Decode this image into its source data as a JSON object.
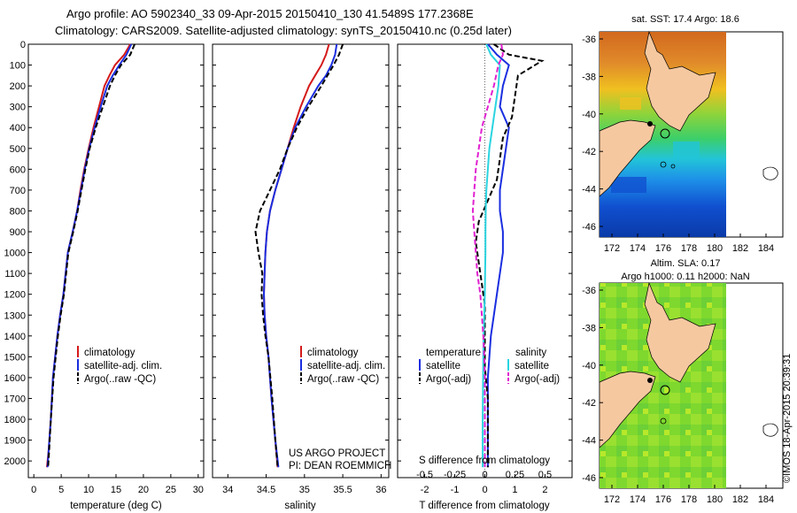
{
  "header": {
    "line1": "Argo profile: AO 5902340_33 09-Apr-2015 20150410_130 41.5489S 177.2368E",
    "line2": "Climatology: CARS2009. Satellite-adjusted climatology: synTS_20150410.nc (0.25d later)"
  },
  "colors": {
    "climatology": "#d41a1a",
    "satellite": "#1a2ee0",
    "argo": "#000000",
    "sat_salinity": "#2ad4e0",
    "argo_salinity": "#e020d0",
    "land": "#f5c8a0"
  },
  "chart_data": [
    {
      "type": "line",
      "panel": "temperature",
      "xlabel": "temperature (deg C)",
      "ylabel": "",
      "xlim": [
        -1,
        31
      ],
      "ylim": [
        2080,
        0
      ],
      "y_reversed": true,
      "xticks": [
        0,
        5,
        10,
        15,
        20,
        25,
        30
      ],
      "yticks": [
        0,
        100,
        200,
        300,
        400,
        500,
        600,
        700,
        800,
        900,
        1000,
        1100,
        1200,
        1300,
        1400,
        1500,
        1600,
        1700,
        1800,
        1900,
        2000
      ],
      "series": [
        {
          "name": "climatology",
          "color": "#d41a1a",
          "x": [
            17.6,
            16.5,
            14.8,
            13.8,
            12.9,
            11.9,
            10.9,
            10.0,
            9.2,
            8.5,
            7.9,
            7.1,
            6.2,
            5.4,
            4.8,
            4.3,
            3.9,
            3.5,
            3.1,
            2.7,
            2.4
          ],
          "y": [
            0,
            50,
            100,
            150,
            200,
            300,
            400,
            500,
            600,
            700,
            800,
            900,
            1000,
            1200,
            1300,
            1400,
            1500,
            1600,
            1800,
            1950,
            2030
          ]
        },
        {
          "name": "satellite-adj. clim.",
          "color": "#1a2ee0",
          "x": [
            17.8,
            16.9,
            15.6,
            14.4,
            13.4,
            12.2,
            11.1,
            10.1,
            9.3,
            8.6,
            7.9,
            7.1,
            6.2,
            5.4,
            4.8,
            4.3,
            3.9,
            3.5,
            3.1,
            2.7,
            2.5
          ],
          "y": [
            0,
            50,
            100,
            150,
            200,
            300,
            400,
            500,
            600,
            700,
            800,
            900,
            1000,
            1200,
            1300,
            1400,
            1500,
            1600,
            1800,
            1950,
            2030
          ]
        },
        {
          "name": "Argo(..raw -QC)",
          "color": "#000000",
          "dashed": true,
          "x": [
            18.4,
            17.6,
            15.9,
            14.8,
            13.9,
            12.6,
            11.3,
            10.2,
            9.4,
            8.7,
            8.0,
            7.2,
            6.3,
            5.5,
            4.9,
            4.4,
            4.0,
            3.6,
            3.1,
            2.8,
            2.6
          ],
          "y": [
            0,
            50,
            100,
            150,
            200,
            300,
            400,
            500,
            600,
            700,
            800,
            900,
            1000,
            1200,
            1300,
            1400,
            1500,
            1600,
            1800,
            1950,
            2030
          ]
        }
      ]
    },
    {
      "type": "line",
      "panel": "salinity",
      "xlabel": "salinity",
      "ylabel": "",
      "xlim": [
        33.8,
        36.1
      ],
      "ylim": [
        2080,
        0
      ],
      "y_reversed": true,
      "xticks": [
        34,
        34.5,
        35,
        35.5,
        36
      ],
      "series": [
        {
          "name": "climatology",
          "color": "#d41a1a",
          "x": [
            35.32,
            35.28,
            35.22,
            35.14,
            35.06,
            34.95,
            34.86,
            34.78,
            34.7,
            34.62,
            34.55,
            34.51,
            34.49,
            34.48,
            34.47,
            34.48,
            34.5,
            34.53,
            34.57,
            34.62,
            34.65
          ],
          "y": [
            0,
            50,
            100,
            150,
            200,
            300,
            400,
            500,
            600,
            700,
            800,
            900,
            1000,
            1100,
            1200,
            1300,
            1400,
            1500,
            1700,
            1900,
            2030
          ]
        },
        {
          "name": "satellite-adj. clim.",
          "color": "#1a2ee0",
          "x": [
            35.42,
            35.4,
            35.35,
            35.28,
            35.18,
            35.02,
            34.88,
            34.78,
            34.7,
            34.62,
            34.55,
            34.51,
            34.49,
            34.48,
            34.47,
            34.48,
            34.5,
            34.53,
            34.57,
            34.62,
            34.66
          ],
          "y": [
            0,
            50,
            100,
            150,
            200,
            300,
            400,
            500,
            600,
            700,
            800,
            900,
            1000,
            1100,
            1200,
            1300,
            1400,
            1500,
            1700,
            1900,
            2030
          ]
        },
        {
          "name": "Argo(..raw -QC)",
          "color": "#000000",
          "dashed": true,
          "x": [
            35.5,
            35.45,
            35.38,
            35.3,
            35.22,
            35.05,
            34.9,
            34.78,
            34.68,
            34.55,
            34.42,
            34.36,
            34.4,
            34.45,
            34.44,
            34.46,
            34.49,
            34.53,
            34.58,
            34.62,
            34.65
          ],
          "y": [
            0,
            50,
            100,
            150,
            200,
            300,
            400,
            500,
            600,
            700,
            800,
            900,
            1000,
            1100,
            1200,
            1300,
            1400,
            1500,
            1700,
            1900,
            2030
          ]
        }
      ]
    },
    {
      "type": "line",
      "panel": "difference",
      "xlabel": "T difference from climatology",
      "xlabel2": "S difference from climatology",
      "xlim": [
        -2.9,
        2.9
      ],
      "ylim": [
        2080,
        0
      ],
      "y_reversed": true,
      "xticks": [
        -2,
        -1,
        0,
        1,
        2
      ],
      "x2ticks": [
        {
          "v": -0.5,
          "t": "-0.5"
        },
        {
          "v": -0.25,
          "t": "-0.25"
        },
        {
          "v": 0,
          "t": "0"
        },
        {
          "v": 0.25,
          "t": "0.25"
        },
        {
          "v": 0.5,
          "t": "0.5"
        }
      ],
      "series": [
        {
          "name": "satellite",
          "group": "temperature",
          "color": "#1a2ee0",
          "x": [
            0.1,
            0.4,
            0.8,
            0.6,
            0.5,
            0.8,
            0.7,
            0.6,
            0.5,
            0.5,
            0.6,
            0.6,
            0.5,
            0.4,
            0.3,
            0.2,
            0.15,
            0.1,
            0.1,
            0.1,
            0.1
          ],
          "y": [
            0,
            50,
            100,
            200,
            300,
            400,
            500,
            600,
            700,
            800,
            900,
            1000,
            1100,
            1200,
            1300,
            1400,
            1500,
            1600,
            1800,
            1900,
            2030
          ]
        },
        {
          "name": "Argo(-adj)",
          "group": "temperature",
          "color": "#000000",
          "dashed": true,
          "x": [
            0.3,
            0.8,
            1.9,
            1.1,
            1.0,
            0.9,
            0.6,
            0.5,
            0.4,
            0.1,
            -0.2,
            -0.3,
            -0.2,
            -0.1,
            0.0,
            0.0,
            0.0,
            0.0,
            0.1,
            0.1,
            0.1
          ],
          "y": [
            0,
            50,
            80,
            150,
            250,
            350,
            450,
            550,
            650,
            750,
            850,
            950,
            1050,
            1150,
            1250,
            1350,
            1450,
            1550,
            1700,
            1900,
            2030
          ]
        },
        {
          "name": "satellite",
          "group": "salinity",
          "color": "#2ad4e0",
          "x": [
            0.05,
            0.2,
            0.5,
            0.45,
            0.35,
            0.25,
            0.15,
            0.1,
            0.05,
            0.03,
            0.02,
            0.02,
            0.01,
            0.0,
            -0.02,
            -0.04,
            -0.05,
            -0.06,
            -0.07,
            -0.07,
            -0.07
          ],
          "y": [
            0,
            50,
            100,
            200,
            300,
            400,
            500,
            600,
            700,
            800,
            900,
            1000,
            1100,
            1200,
            1300,
            1400,
            1500,
            1600,
            1800,
            1900,
            2030
          ]
        },
        {
          "name": "Argo(-adj)",
          "group": "salinity",
          "color": "#e020d0",
          "dashed": true,
          "x": [
            0.55,
            0.6,
            0.45,
            0.3,
            0.1,
            -0.1,
            -0.2,
            -0.3,
            -0.35,
            -0.4,
            -0.35,
            -0.3,
            -0.25,
            -0.15,
            -0.1,
            -0.05,
            -0.02,
            0.0,
            0.0,
            0.0,
            0.0
          ],
          "y": [
            0,
            50,
            100,
            200,
            300,
            400,
            500,
            600,
            700,
            800,
            900,
            1000,
            1100,
            1200,
            1300,
            1400,
            1500,
            1600,
            1800,
            1900,
            2030
          ]
        }
      ]
    }
  ],
  "legends": {
    "temperature": [
      {
        "label": "climatology",
        "color": "#d41a1a"
      },
      {
        "label": "satellite-adj. clim.",
        "color": "#1a2ee0"
      },
      {
        "label": "Argo(..raw -QC)",
        "color": "#000000"
      }
    ],
    "salinity": [
      {
        "label": "climatology",
        "color": "#d41a1a"
      },
      {
        "label": "satellite-adj. clim.",
        "color": "#1a2ee0"
      },
      {
        "label": "Argo(..raw -QC)",
        "color": "#000000"
      }
    ],
    "difference": {
      "left_head": "temperature",
      "right_head": "salinity",
      "left": [
        {
          "label": "satellite",
          "color": "#1a2ee0"
        },
        {
          "label": "Argo(-adj)",
          "color": "#000000"
        }
      ],
      "right": [
        {
          "label": "satellite",
          "color": "#2ad4e0"
        },
        {
          "label": "Argo(-adj)",
          "color": "#e020d0"
        }
      ]
    }
  },
  "annotations": {
    "project": "US ARGO PROJECT",
    "pi": "PI: DEAN ROEMMICH"
  },
  "maps": {
    "sst_title": "sat. SST: 17.4  Argo: 18.6",
    "sla_title1": "Altim. SLA: 0.17",
    "sla_title2": "Argo h1000: 0.11  h2000: NaN",
    "lat_ticks": [
      "-36",
      "-38",
      "-40",
      "-42",
      "-44",
      "-46"
    ],
    "lon_ticks": [
      "172",
      "174",
      "176",
      "178",
      "180",
      "182",
      "184"
    ]
  },
  "footer": "©IMOS 18-Apr-2015 20:39:31"
}
